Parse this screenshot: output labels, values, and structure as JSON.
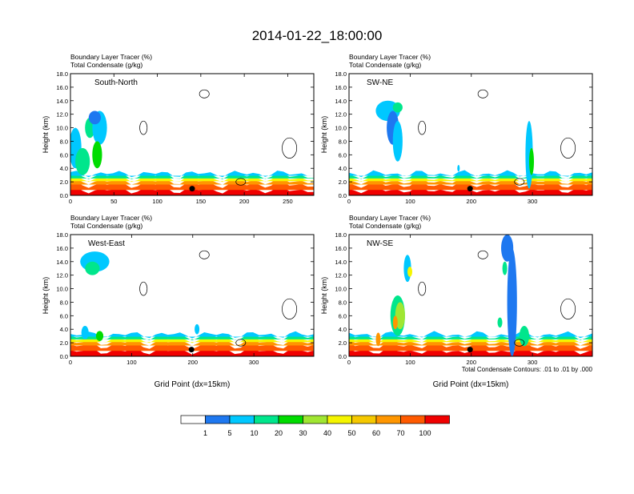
{
  "title": "2014-01-22_18:00:00",
  "label_line1": "Boundary Layer Tracer   (%)",
  "label_line1_b": "Boundary Layer Tracer   (%)",
  "label_line2": "Total Condensate   (g/kg)",
  "contour_note": "Total Condensate Contours: .01 to .01 by .000",
  "colorbar": {
    "colors": [
      "#ffffff",
      "#1e78f0",
      "#00c8ff",
      "#00e68c",
      "#00dc00",
      "#a0e632",
      "#f5f500",
      "#f5c800",
      "#ff9600",
      "#ff5a00",
      "#f00000"
    ],
    "labels": [
      "1",
      "5",
      "10",
      "20",
      "30",
      "40",
      "50",
      "60",
      "70",
      "100"
    ]
  },
  "chart_data": [
    {
      "type": "heatmap",
      "panel_label": "South-North",
      "ylabel": "Height (km)",
      "xlabel": "",
      "ylim": [
        0,
        18
      ],
      "yticks": [
        "0.0",
        "2.0",
        "4.0",
        "6.0",
        "8.0",
        "10.0",
        "12.0",
        "14.0",
        "16.0",
        "18.0"
      ],
      "xlim": [
        0,
        280
      ],
      "xticks": [
        0,
        50,
        100,
        150,
        200,
        250
      ],
      "marker_x": 140
    },
    {
      "type": "heatmap",
      "panel_label": "SW-NE",
      "ylabel": "Height (km)",
      "xlabel": "",
      "ylim": [
        0,
        18
      ],
      "yticks": [
        "0.0",
        "2.0",
        "4.0",
        "6.0",
        "8.0",
        "10.0",
        "12.0",
        "14.0",
        "16.0",
        "18.0"
      ],
      "xlim": [
        0,
        398
      ],
      "xticks": [
        0,
        100,
        200,
        300
      ],
      "marker_x": 198
    },
    {
      "type": "heatmap",
      "panel_label": "West-East",
      "ylabel": "Height (km)",
      "xlabel": "Grid Point (dx=15km)",
      "ylim": [
        0,
        18
      ],
      "yticks": [
        "0.0",
        "2.0",
        "4.0",
        "6.0",
        "8.0",
        "10.0",
        "12.0",
        "14.0",
        "16.0",
        "18.0"
      ],
      "xlim": [
        0,
        398
      ],
      "xticks": [
        0,
        100,
        200,
        300
      ],
      "marker_x": 198
    },
    {
      "type": "heatmap",
      "panel_label": "NW-SE",
      "ylabel": "Height (km)",
      "xlabel": "Grid Point (dx=15km)",
      "ylim": [
        0,
        18
      ],
      "yticks": [
        "0.0",
        "2.0",
        "4.0",
        "6.0",
        "8.0",
        "10.0",
        "12.0",
        "14.0",
        "16.0",
        "18.0"
      ],
      "xlim": [
        0,
        398
      ],
      "xticks": [
        0,
        100,
        200,
        300
      ],
      "marker_x": 198
    }
  ]
}
